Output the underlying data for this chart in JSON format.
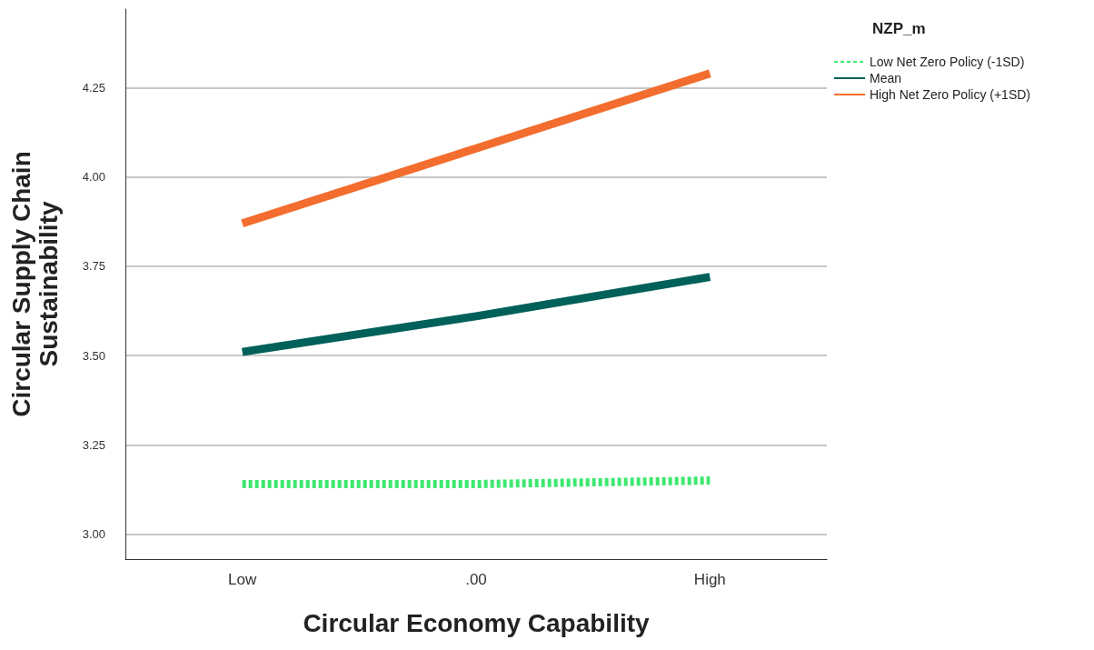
{
  "chart_data": {
    "type": "line",
    "xlabel": "Circular Economy Capability",
    "ylabel": "Circular Supply Chain\nSustainability",
    "legend_title": "NZP_m",
    "categories": [
      "Low",
      ".00",
      "High"
    ],
    "ylim": [
      2.93,
      4.47
    ],
    "yticks": [
      {
        "value": 3,
        "label": "3.00"
      },
      {
        "value": 3.25,
        "label": "3.25"
      },
      {
        "value": 3.5,
        "label": "3.50"
      },
      {
        "value": 3.75,
        "label": "3.75"
      },
      {
        "value": 4,
        "label": "4.00"
      },
      {
        "value": 4.25,
        "label": "4.25"
      }
    ],
    "grid": "y",
    "legend": "top right",
    "marker": "none",
    "series": [
      {
        "name": "Low Net Zero Policy (-1SD)",
        "color": "#3de86f",
        "values": [
          3.14,
          3.14,
          3.15
        ],
        "line_style": "dashed"
      },
      {
        "name": "Mean",
        "color": "#00605a",
        "values": [
          3.51,
          3.61,
          3.72
        ],
        "line_style": "solid"
      },
      {
        "name": "High Net Zero Policy (+1SD)",
        "color": "#f26d2e",
        "values": [
          3.87,
          4.08,
          4.29
        ],
        "line_style": "solid"
      }
    ]
  }
}
